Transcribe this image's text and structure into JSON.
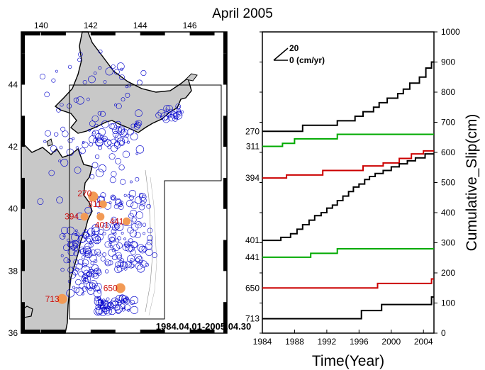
{
  "title": "April 2005",
  "map": {
    "lon_ticks": [
      "140",
      "142",
      "144",
      "146"
    ],
    "lat_ticks": [
      "44",
      "42",
      "40",
      "38",
      "36"
    ],
    "period_label": "1984.04.01-2005.04.30",
    "land_color": "#c8c8c8",
    "event_color": "#0000cc",
    "station_color": "#f29a55",
    "label_color": "#cc1111",
    "stations": [
      {
        "id": "270",
        "lon": 142.1,
        "lat": 40.4
      },
      {
        "id": "311",
        "lon": 142.5,
        "lat": 40.15
      },
      {
        "id": "394",
        "lon": 141.75,
        "lat": 39.75
      },
      {
        "id": "401",
        "lon": 142.4,
        "lat": 39.75
      },
      {
        "id": "441",
        "lon": 143.45,
        "lat": 39.6
      },
      {
        "id": "650",
        "lon": 143.2,
        "lat": 37.45
      },
      {
        "id": "713",
        "lon": 140.85,
        "lat": 37.1
      }
    ]
  },
  "chart_data": {
    "type": "line",
    "title": "",
    "xlabel": "Time(Year)",
    "ylabel": "Cumulative_Slip(cm)",
    "xlim": [
      1984,
      2005.3
    ],
    "ylim": [
      0,
      1000
    ],
    "x_ticks": [
      "1984",
      "1988",
      "1992",
      "1996",
      "2000",
      "2004"
    ],
    "y_ticks": [
      "0",
      "100",
      "200",
      "300",
      "400",
      "500",
      "600",
      "700",
      "800",
      "900",
      "1000"
    ],
    "legend": {
      "scale_value": "20",
      "scale_label": "0 (cm/yr)"
    },
    "series": [
      {
        "name": "270",
        "color": "#000000",
        "points": [
          [
            1984,
            670
          ],
          [
            1989,
            670
          ],
          [
            1989,
            690
          ],
          [
            1993.3,
            690
          ],
          [
            1993.3,
            705
          ],
          [
            1995.5,
            705
          ],
          [
            1995.5,
            720
          ],
          [
            1996.5,
            720
          ],
          [
            1996.5,
            735
          ],
          [
            1997.8,
            735
          ],
          [
            1997.8,
            750
          ],
          [
            1998.5,
            750
          ],
          [
            1998.5,
            765
          ],
          [
            1999.5,
            765
          ],
          [
            1999.5,
            780
          ],
          [
            2000.8,
            780
          ],
          [
            2000.8,
            795
          ],
          [
            2001.5,
            795
          ],
          [
            2001.5,
            810
          ],
          [
            2002.3,
            810
          ],
          [
            2002.3,
            830
          ],
          [
            2003.5,
            830
          ],
          [
            2003.5,
            850
          ],
          [
            2004.3,
            850
          ],
          [
            2004.3,
            880
          ],
          [
            2005,
            880
          ],
          [
            2005,
            900
          ],
          [
            2005.3,
            900
          ]
        ]
      },
      {
        "name": "311",
        "color": "#00aa00",
        "points": [
          [
            1984,
            620
          ],
          [
            1986.5,
            620
          ],
          [
            1986.5,
            630
          ],
          [
            1988,
            630
          ],
          [
            1988,
            645
          ],
          [
            1993.3,
            645
          ],
          [
            1993.3,
            660
          ],
          [
            2005.3,
            660
          ]
        ]
      },
      {
        "name": "394",
        "color": "#cc0000",
        "points": [
          [
            1984,
            515
          ],
          [
            1987,
            515
          ],
          [
            1987,
            525
          ],
          [
            1991.5,
            525
          ],
          [
            1991.5,
            540
          ],
          [
            1996.5,
            540
          ],
          [
            1996.5,
            555
          ],
          [
            1999,
            555
          ],
          [
            1999,
            565
          ],
          [
            2001,
            565
          ],
          [
            2001,
            580
          ],
          [
            2002.5,
            580
          ],
          [
            2002.5,
            595
          ],
          [
            2004,
            595
          ],
          [
            2004,
            605
          ],
          [
            2005.3,
            605
          ]
        ]
      },
      {
        "name": "401",
        "color": "#000000",
        "points": [
          [
            1984,
            308
          ],
          [
            1986.3,
            308
          ],
          [
            1986.3,
            318
          ],
          [
            1987.5,
            318
          ],
          [
            1987.5,
            330
          ],
          [
            1988.3,
            330
          ],
          [
            1988.3,
            345
          ],
          [
            1989,
            345
          ],
          [
            1989,
            360
          ],
          [
            1989.8,
            360
          ],
          [
            1989.8,
            375
          ],
          [
            1990.5,
            375
          ],
          [
            1990.5,
            390
          ],
          [
            1991.3,
            390
          ],
          [
            1991.3,
            400
          ],
          [
            1992,
            400
          ],
          [
            1992,
            415
          ],
          [
            1992.7,
            415
          ],
          [
            1992.7,
            425
          ],
          [
            1993.3,
            425
          ],
          [
            1993.3,
            440
          ],
          [
            1994,
            440
          ],
          [
            1994,
            455
          ],
          [
            1994.7,
            455
          ],
          [
            1994.7,
            470
          ],
          [
            1995.3,
            470
          ],
          [
            1995.3,
            485
          ],
          [
            1996,
            485
          ],
          [
            1996,
            495
          ],
          [
            1996.7,
            495
          ],
          [
            1996.7,
            510
          ],
          [
            1997.3,
            510
          ],
          [
            1997.3,
            520
          ],
          [
            1998,
            520
          ],
          [
            1998,
            530
          ],
          [
            1999,
            530
          ],
          [
            1999,
            540
          ],
          [
            2000,
            540
          ],
          [
            2000,
            552
          ],
          [
            2001,
            552
          ],
          [
            2001,
            562
          ],
          [
            2002,
            562
          ],
          [
            2002,
            572
          ],
          [
            2003,
            572
          ],
          [
            2003,
            582
          ],
          [
            2004.2,
            582
          ],
          [
            2004.2,
            595
          ],
          [
            2005.3,
            595
          ]
        ]
      },
      {
        "name": "441",
        "color": "#00aa00",
        "points": [
          [
            1984,
            252
          ],
          [
            1990,
            252
          ],
          [
            1990,
            265
          ],
          [
            1993.3,
            265
          ],
          [
            1993.3,
            280
          ],
          [
            2005.3,
            280
          ]
        ]
      },
      {
        "name": "650",
        "color": "#cc0000",
        "points": [
          [
            1984,
            150
          ],
          [
            1998.3,
            150
          ],
          [
            1998.3,
            165
          ],
          [
            2005,
            165
          ],
          [
            2005,
            180
          ],
          [
            2005.3,
            180
          ]
        ]
      },
      {
        "name": "713",
        "color": "#000000",
        "points": [
          [
            1984,
            48
          ],
          [
            1996.3,
            48
          ],
          [
            1996.3,
            75
          ],
          [
            1998.8,
            75
          ],
          [
            1998.8,
            95
          ],
          [
            2005,
            95
          ],
          [
            2005,
            120
          ],
          [
            2005.3,
            120
          ]
        ]
      }
    ]
  }
}
